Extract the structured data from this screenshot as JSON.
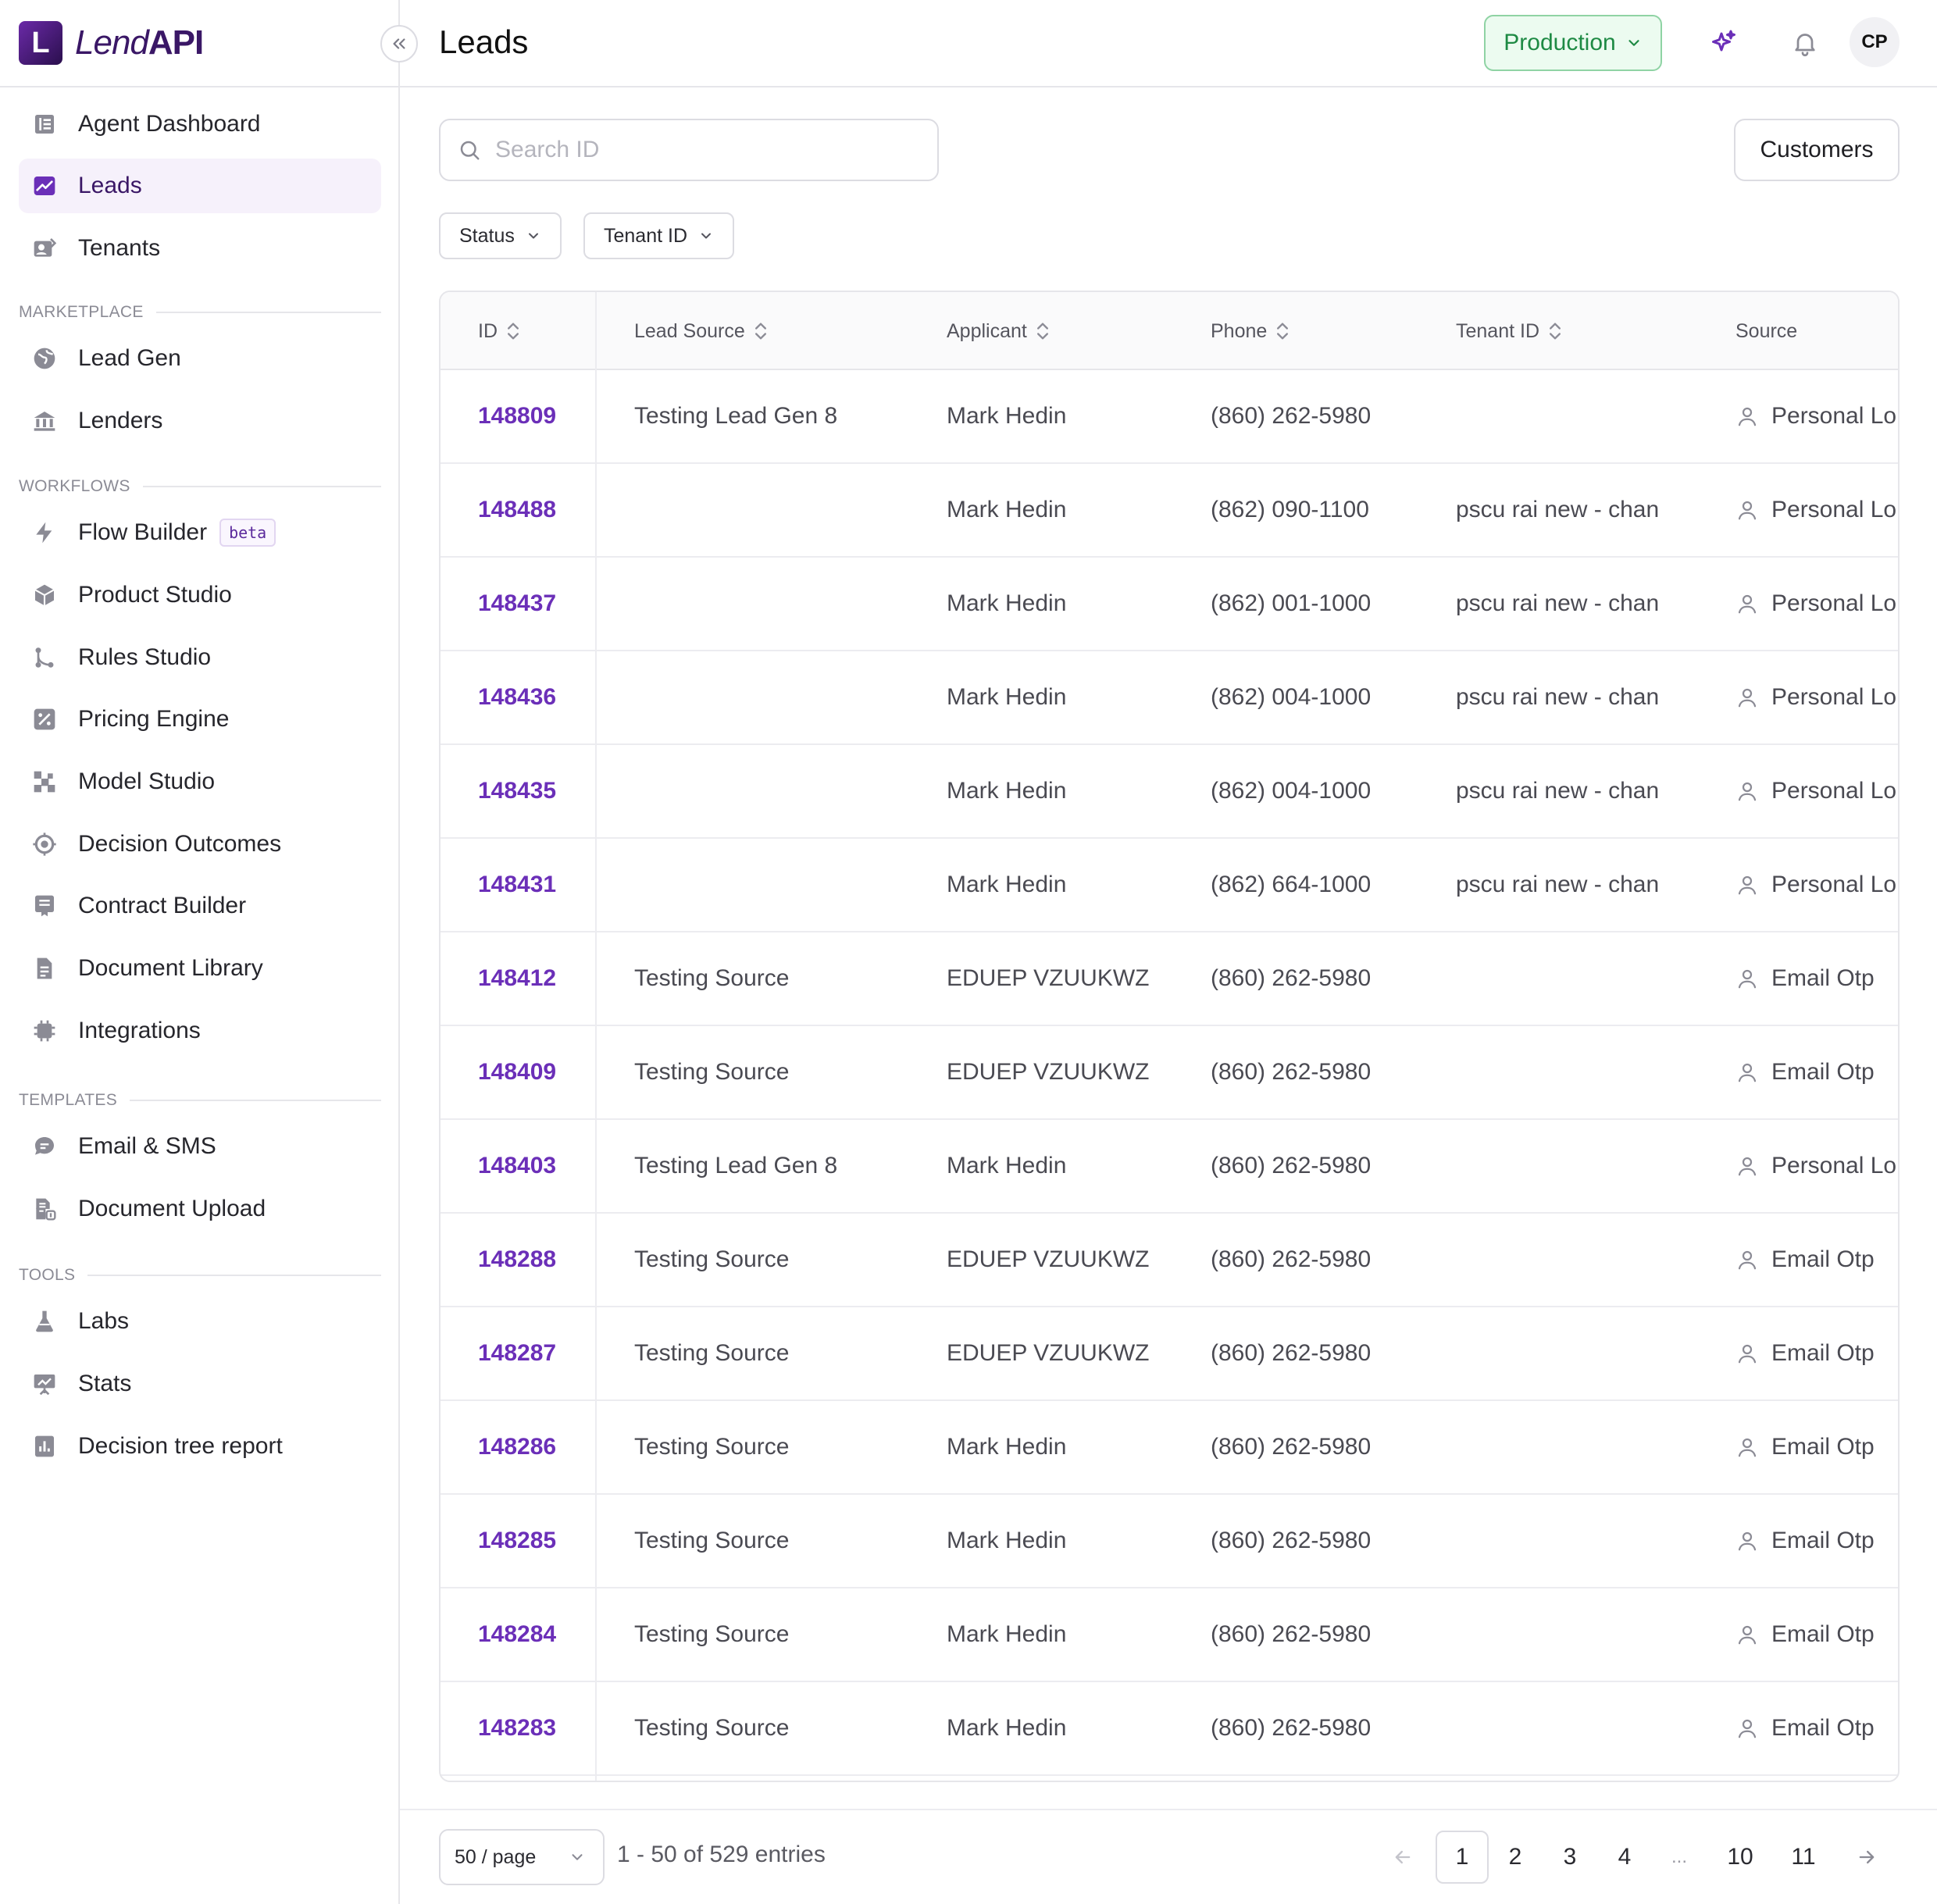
{
  "brand": {
    "mark": "L",
    "lend": "Lend",
    "api": "API"
  },
  "header": {
    "title": "Leads",
    "environment": "Production",
    "avatar_initials": "CP"
  },
  "sidebar": {
    "items_top": [
      {
        "label": "Agent Dashboard",
        "icon": "dashboard-icon"
      },
      {
        "label": "Leads",
        "icon": "chart-trend-icon",
        "active": true
      },
      {
        "label": "Tenants",
        "icon": "tenants-icon"
      }
    ],
    "sections": [
      {
        "label": "MARKETPLACE",
        "items": [
          {
            "label": "Lead Gen",
            "icon": "globe-icon"
          },
          {
            "label": "Lenders",
            "icon": "bank-icon"
          }
        ]
      },
      {
        "label": "WORKFLOWS",
        "items": [
          {
            "label": "Flow Builder",
            "icon": "lightning-icon",
            "badge": "beta"
          },
          {
            "label": "Product Studio",
            "icon": "cube-icon"
          },
          {
            "label": "Rules Studio",
            "icon": "branch-icon"
          },
          {
            "label": "Pricing Engine",
            "icon": "percent-icon"
          },
          {
            "label": "Model Studio",
            "icon": "blocks-icon"
          },
          {
            "label": "Decision Outcomes",
            "icon": "target-icon"
          },
          {
            "label": "Contract Builder",
            "icon": "certificate-icon"
          },
          {
            "label": "Document Library",
            "icon": "document-icon"
          },
          {
            "label": "Integrations",
            "icon": "chip-icon"
          }
        ]
      },
      {
        "label": "TEMPLATES",
        "items": [
          {
            "label": "Email & SMS",
            "icon": "chat-icon"
          },
          {
            "label": "Document Upload",
            "icon": "document-upload-icon"
          }
        ]
      },
      {
        "label": "TOOLS",
        "items": [
          {
            "label": "Labs",
            "icon": "flask-icon"
          },
          {
            "label": "Stats",
            "icon": "presentation-icon"
          },
          {
            "label": "Decision tree report",
            "icon": "bar-report-icon"
          }
        ]
      }
    ]
  },
  "toolbar": {
    "search_placeholder": "Search ID",
    "customers_label": "Customers",
    "filters": [
      "Status",
      "Tenant ID"
    ]
  },
  "table": {
    "columns": [
      "ID",
      "Lead Source",
      "Applicant",
      "Phone",
      "Tenant ID",
      "Source"
    ],
    "rows": [
      {
        "id": "148809",
        "lead_source": "Testing Lead Gen 8",
        "applicant": "Mark Hedin",
        "phone": "(860) 262-5980",
        "tenant_id": "",
        "source": "Personal Lo"
      },
      {
        "id": "148488",
        "lead_source": "",
        "applicant": "Mark Hedin",
        "phone": "(862) 090-1100",
        "tenant_id": "pscu rai new - chan",
        "source": "Personal Lo"
      },
      {
        "id": "148437",
        "lead_source": "",
        "applicant": "Mark Hedin",
        "phone": "(862) 001-1000",
        "tenant_id": "pscu rai new - chan",
        "source": "Personal Lo"
      },
      {
        "id": "148436",
        "lead_source": "",
        "applicant": "Mark Hedin",
        "phone": "(862) 004-1000",
        "tenant_id": "pscu rai new - chan",
        "source": "Personal Lo"
      },
      {
        "id": "148435",
        "lead_source": "",
        "applicant": "Mark Hedin",
        "phone": "(862) 004-1000",
        "tenant_id": "pscu rai new - chan",
        "source": "Personal Lo"
      },
      {
        "id": "148431",
        "lead_source": "",
        "applicant": "Mark Hedin",
        "phone": "(862) 664-1000",
        "tenant_id": "pscu rai new - chan",
        "source": "Personal Lo"
      },
      {
        "id": "148412",
        "lead_source": "Testing Source",
        "applicant": "EDUEP VZUUKWZ",
        "phone": "(860) 262-5980",
        "tenant_id": "",
        "source": "Email Otp"
      },
      {
        "id": "148409",
        "lead_source": "Testing Source",
        "applicant": "EDUEP VZUUKWZ",
        "phone": "(860) 262-5980",
        "tenant_id": "",
        "source": "Email Otp"
      },
      {
        "id": "148403",
        "lead_source": "Testing Lead Gen 8",
        "applicant": "Mark Hedin",
        "phone": "(860) 262-5980",
        "tenant_id": "",
        "source": "Personal Lo"
      },
      {
        "id": "148288",
        "lead_source": "Testing Source",
        "applicant": "EDUEP VZUUKWZ",
        "phone": "(860) 262-5980",
        "tenant_id": "",
        "source": "Email Otp"
      },
      {
        "id": "148287",
        "lead_source": "Testing Source",
        "applicant": "EDUEP VZUUKWZ",
        "phone": "(860) 262-5980",
        "tenant_id": "",
        "source": "Email Otp"
      },
      {
        "id": "148286",
        "lead_source": "Testing Source",
        "applicant": "Mark Hedin",
        "phone": "(860) 262-5980",
        "tenant_id": "",
        "source": "Email Otp"
      },
      {
        "id": "148285",
        "lead_source": "Testing Source",
        "applicant": "Mark Hedin",
        "phone": "(860) 262-5980",
        "tenant_id": "",
        "source": "Email Otp"
      },
      {
        "id": "148284",
        "lead_source": "Testing Source",
        "applicant": "Mark Hedin",
        "phone": "(860) 262-5980",
        "tenant_id": "",
        "source": "Email Otp"
      },
      {
        "id": "148283",
        "lead_source": "Testing Source",
        "applicant": "Mark Hedin",
        "phone": "(860) 262-5980",
        "tenant_id": "",
        "source": "Email Otp"
      }
    ]
  },
  "pagination": {
    "page_size": "50 / page",
    "entries": "1 - 50 of 529 entries",
    "pages": [
      "1",
      "2",
      "3",
      "4",
      "...",
      "10",
      "11"
    ],
    "current": "1"
  },
  "colors": {
    "accent": "#6b2fb8",
    "env_green": "#1e8a44",
    "env_bg": "#ecfbf0"
  }
}
